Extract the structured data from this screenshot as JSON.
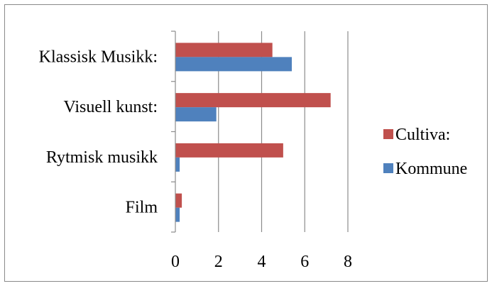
{
  "chart_data": {
    "type": "bar",
    "orientation": "horizontal",
    "title": "",
    "xlabel": "",
    "ylabel": "",
    "categories": [
      "Klassisk Musikk:",
      "Visuell kunst:",
      "Rytmisk musikk",
      "Film"
    ],
    "series": [
      {
        "name": "Cultiva:",
        "color": "#c0504d",
        "values": [
          4.5,
          7.2,
          5.0,
          0.3
        ]
      },
      {
        "name": "Kommune",
        "color": "#4f81bd",
        "values": [
          5.4,
          1.9,
          0.2,
          0.2
        ]
      }
    ],
    "xlim": [
      0,
      8
    ],
    "xticks": [
      0,
      2,
      4,
      6,
      8
    ],
    "grid": true,
    "legend": "right"
  }
}
